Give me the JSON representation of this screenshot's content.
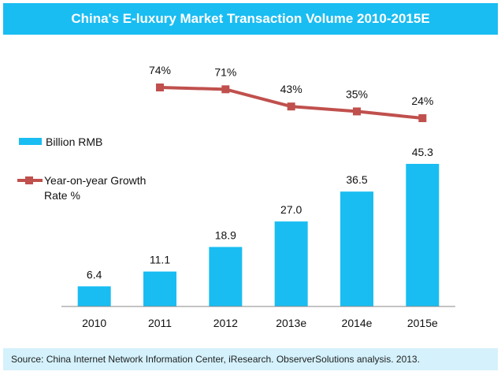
{
  "chart_data": {
    "type": "bar",
    "title": "China's E-luxury Market Transaction Volume 2010-2015E",
    "categories": [
      "2010",
      "2011",
      "2012",
      "2013e",
      "2014e",
      "2015e"
    ],
    "series": [
      {
        "name": "Billion RMB",
        "type": "bar",
        "values": [
          6.4,
          11.1,
          18.9,
          27.0,
          36.5,
          45.3
        ],
        "labels": [
          "6.4",
          "11.1",
          "18.9",
          "27.0",
          "36.5",
          "45.3"
        ],
        "color": "#19bdf2"
      },
      {
        "name": "Year-on-year Growth Rate %",
        "type": "line",
        "values": [
          null,
          74,
          71,
          43,
          35,
          24
        ],
        "labels": [
          "",
          "74%",
          "71%",
          "43%",
          "35%",
          "24%"
        ],
        "color": "#c0504d"
      }
    ],
    "legend": {
      "position": "left",
      "items": [
        {
          "label": "Billion RMB",
          "line2": ""
        },
        {
          "label": "Year-on-year Growth",
          "line2": "Rate %"
        }
      ]
    },
    "xlabel": "",
    "ylabel": "",
    "grid": false,
    "bar_ylim": [
      0,
      50
    ],
    "line_ylim": [
      0,
      100
    ],
    "source": "Source:  China Internet Network Information Center, iResearch. ObserverSolutions analysis. 2013."
  }
}
